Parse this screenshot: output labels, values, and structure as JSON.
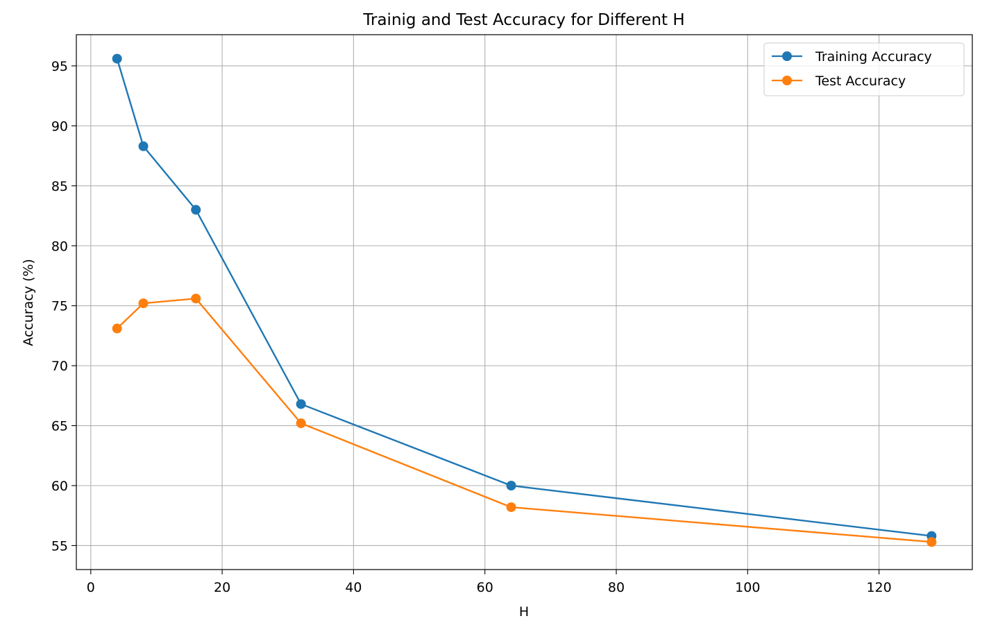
{
  "chart_data": {
    "type": "line",
    "title": "Trainig and Test Accuracy for Different H",
    "xlabel": "H",
    "ylabel": "Accuracy (%)",
    "x": [
      4,
      8,
      16,
      32,
      64,
      128
    ],
    "series": [
      {
        "name": "Training Accuracy",
        "color": "#1f77b4",
        "marker": "circle",
        "values": [
          95.6,
          88.3,
          83.0,
          66.8,
          60.0,
          55.8
        ]
      },
      {
        "name": "Test Accuracy",
        "color": "#ff7f0e",
        "marker": "circle",
        "values": [
          73.1,
          75.2,
          75.6,
          65.2,
          58.2,
          55.3
        ]
      }
    ],
    "xlim": [
      -2.2,
      134.2
    ],
    "ylim": [
      53.0,
      97.6
    ],
    "xticks": [
      0,
      20,
      40,
      60,
      80,
      100,
      120
    ],
    "yticks": [
      55,
      60,
      65,
      70,
      75,
      80,
      85,
      90,
      95
    ],
    "grid": true,
    "legend_position": "top-right"
  }
}
